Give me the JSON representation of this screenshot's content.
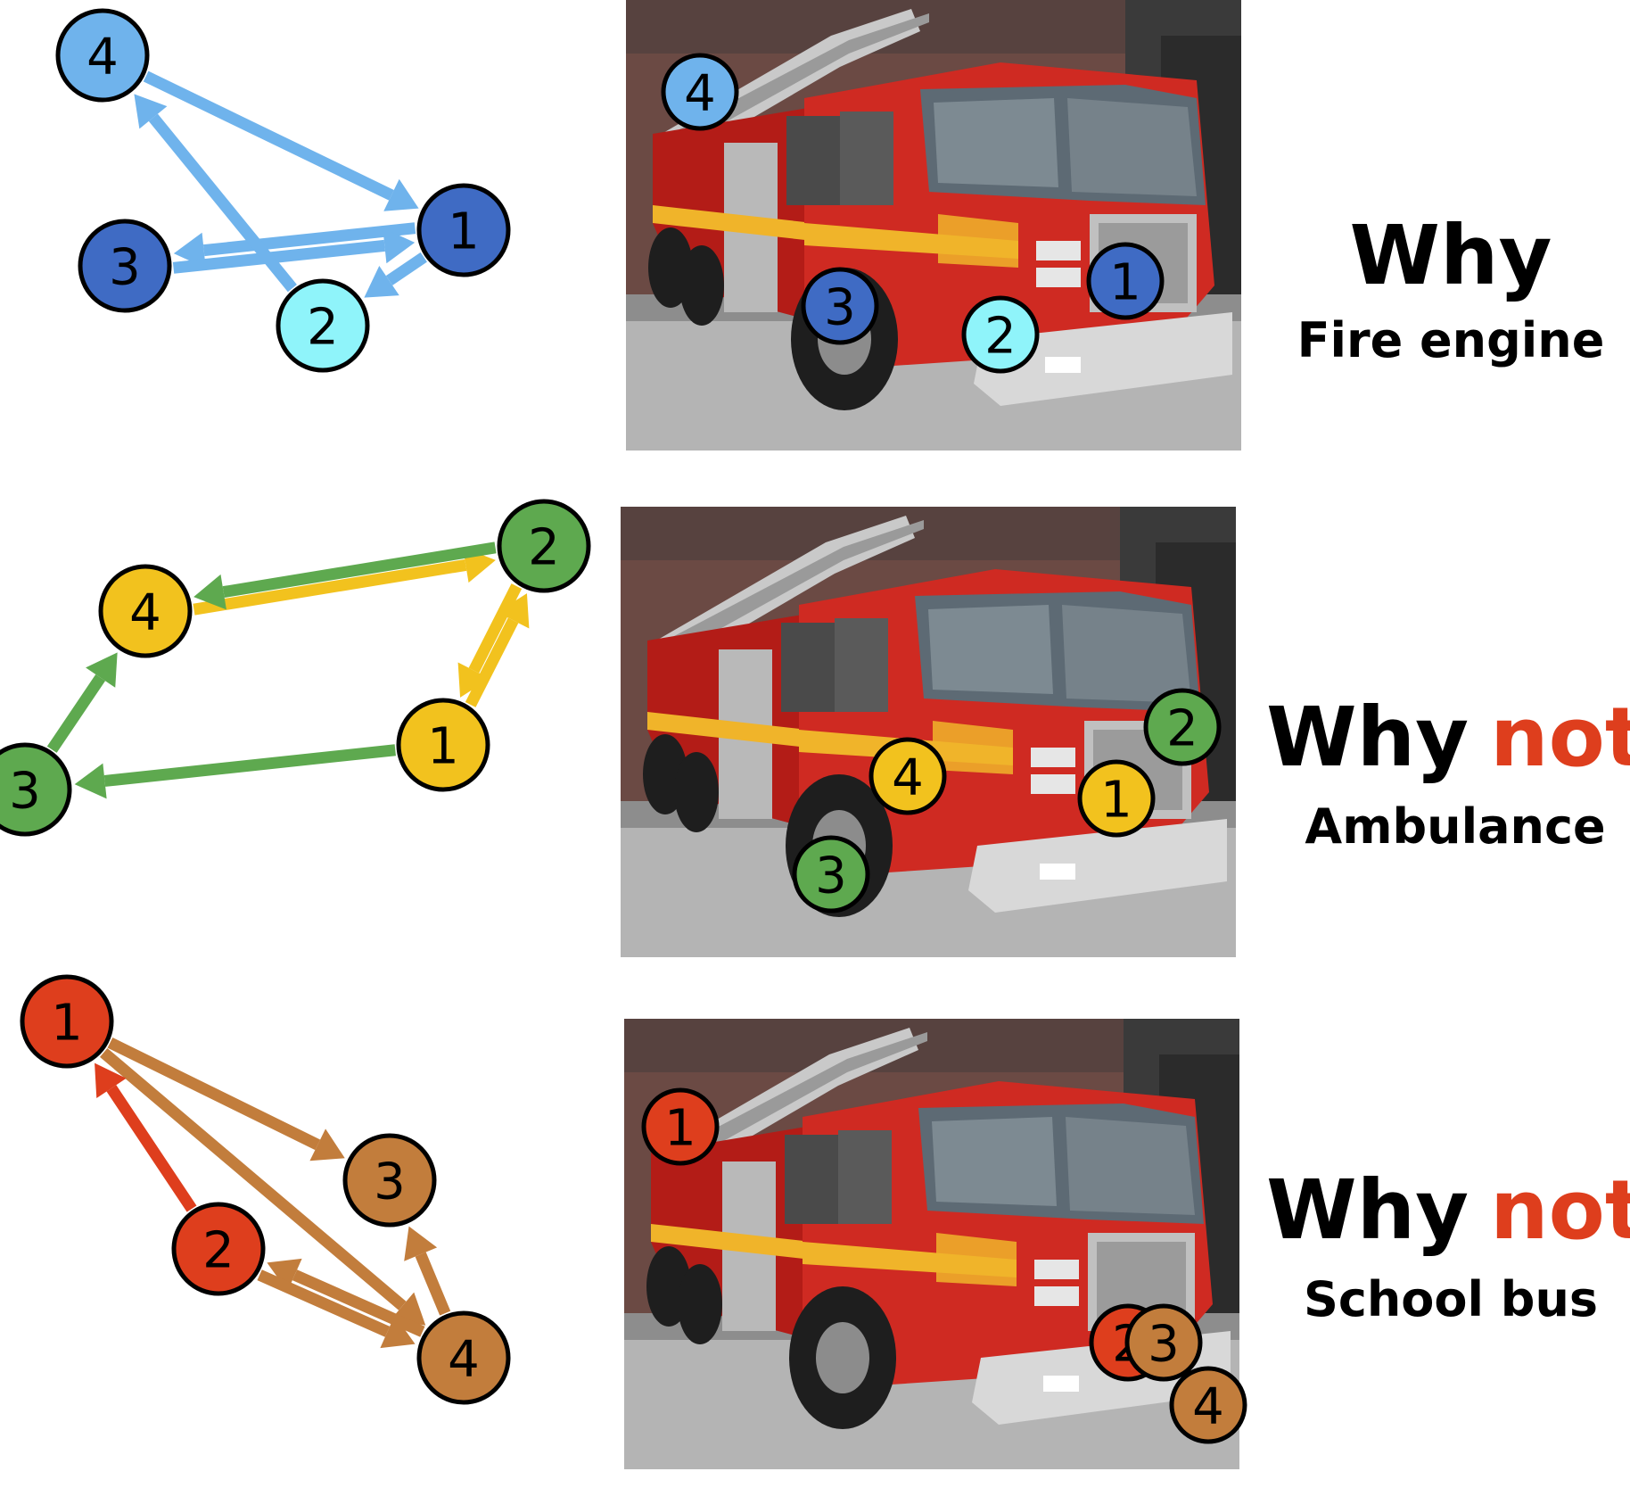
{
  "colors": {
    "light_blue": "#6fb3ec",
    "dark_blue": "#3f6bc4",
    "cyan": "#8ff4fa",
    "yellow": "#f2c21e",
    "green": "#5ea94f",
    "red": "#de3e1d",
    "brown": "#c27d3c",
    "not_red": "#de3e1d"
  },
  "panels": [
    {
      "caption_main": "Why",
      "caption_highlight": "",
      "caption_sub": "Fire engine",
      "nodes": [
        {
          "label": "4",
          "color": "light_blue"
        },
        {
          "label": "1",
          "color": "dark_blue"
        },
        {
          "label": "3",
          "color": "dark_blue"
        },
        {
          "label": "2",
          "color": "cyan"
        }
      ],
      "photo_nodes": [
        {
          "label": "4",
          "color": "light_blue"
        },
        {
          "label": "1",
          "color": "dark_blue"
        },
        {
          "label": "3",
          "color": "dark_blue"
        },
        {
          "label": "2",
          "color": "cyan"
        }
      ]
    },
    {
      "caption_main": "Why",
      "caption_highlight": "not",
      "caption_sub": "Ambulance",
      "nodes": [
        {
          "label": "2",
          "color": "green"
        },
        {
          "label": "4",
          "color": "yellow"
        },
        {
          "label": "1",
          "color": "yellow"
        },
        {
          "label": "3",
          "color": "green"
        }
      ],
      "photo_nodes": [
        {
          "label": "2",
          "color": "green"
        },
        {
          "label": "4",
          "color": "yellow"
        },
        {
          "label": "1",
          "color": "yellow"
        },
        {
          "label": "3",
          "color": "green"
        }
      ]
    },
    {
      "caption_main": "Why",
      "caption_highlight": "not",
      "caption_sub": "School bus",
      "nodes": [
        {
          "label": "1",
          "color": "red"
        },
        {
          "label": "3",
          "color": "brown"
        },
        {
          "label": "2",
          "color": "red"
        },
        {
          "label": "4",
          "color": "brown"
        }
      ],
      "photo_nodes": [
        {
          "label": "1",
          "color": "red"
        },
        {
          "label": "2",
          "color": "red"
        },
        {
          "label": "3",
          "color": "brown"
        },
        {
          "label": "4",
          "color": "brown"
        }
      ]
    }
  ]
}
